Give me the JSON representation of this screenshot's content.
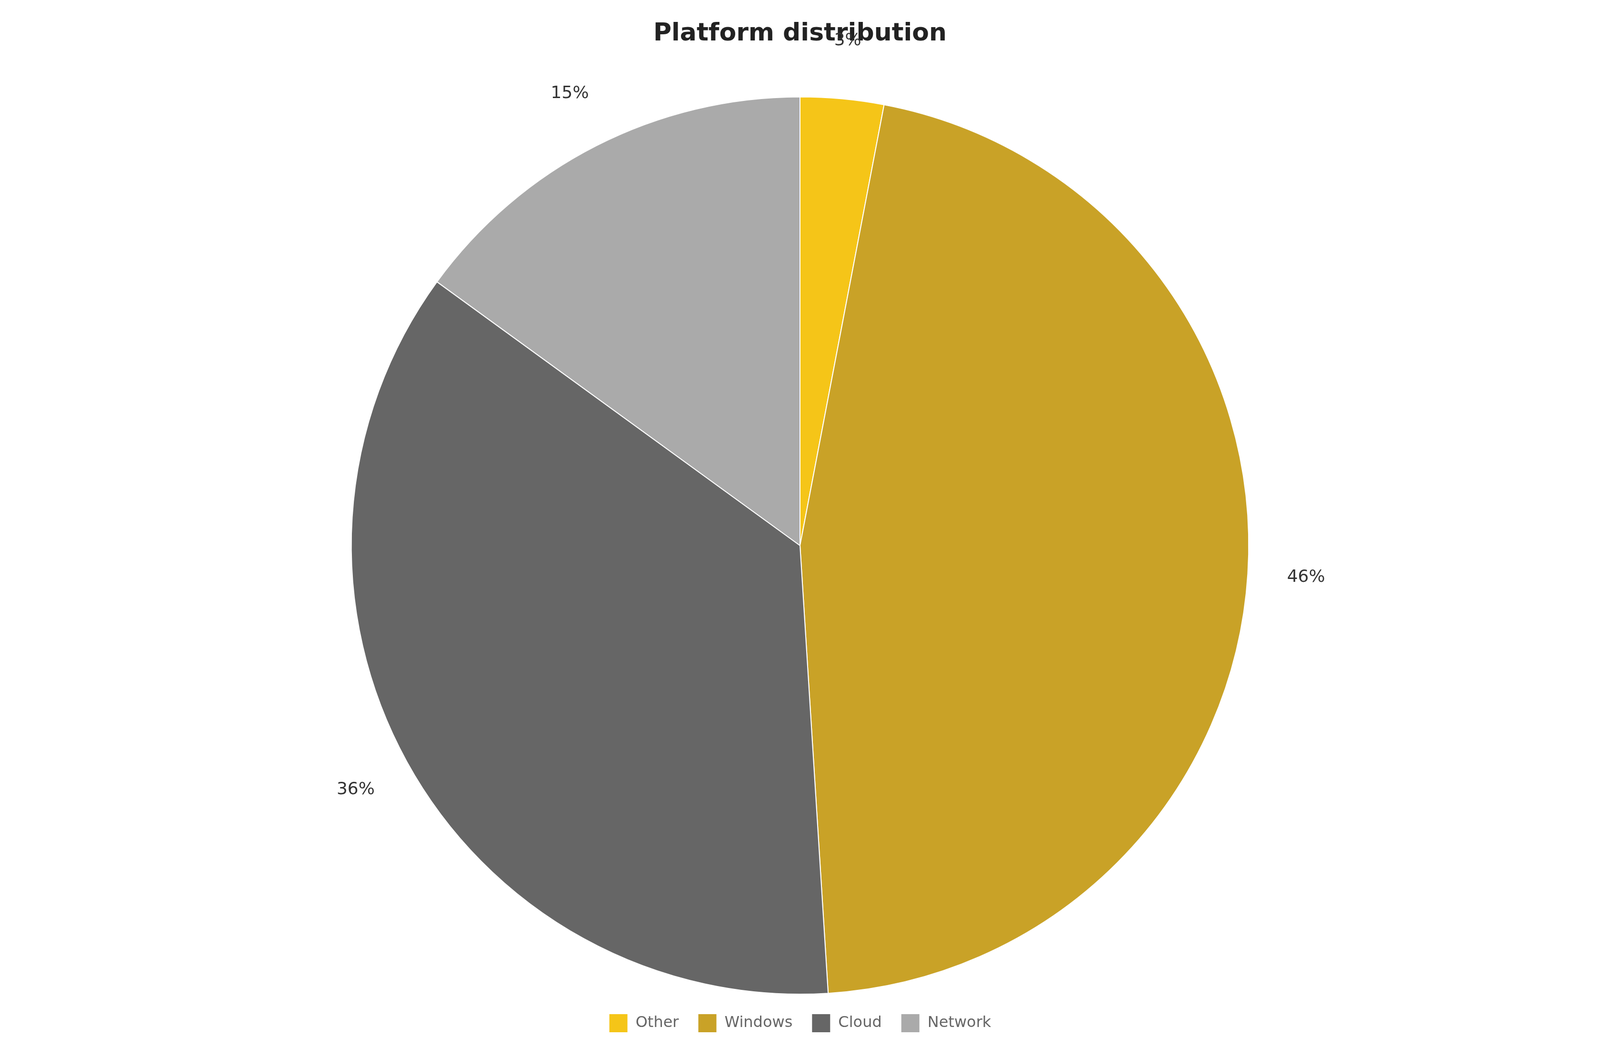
{
  "chart_data": {
    "type": "pie",
    "title": "Platform distribution",
    "categories": [
      "Other",
      "Windows",
      "Cloud",
      "Network"
    ],
    "values": [
      3,
      46,
      36,
      15
    ],
    "value_labels": [
      "3%",
      "46%",
      "36%",
      "15%"
    ],
    "colors": [
      "#F5C518",
      "#C9A227",
      "#666666",
      "#AAAAAA"
    ],
    "data_labels": true,
    "legend": "bottom"
  }
}
